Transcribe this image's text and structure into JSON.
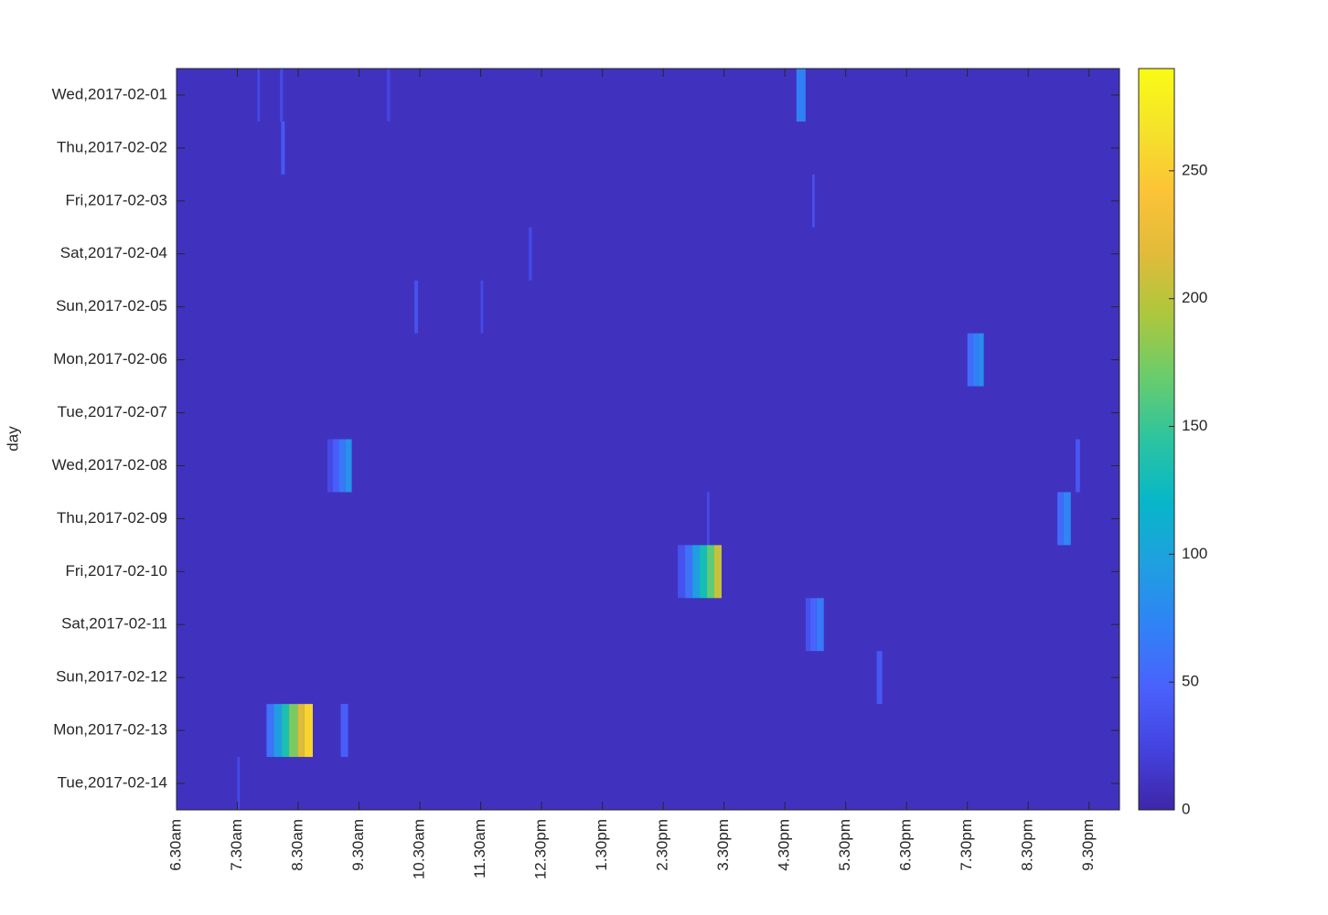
{
  "chart_data": {
    "type": "heatmap",
    "ylabel": "day",
    "categories": [
      "Wed,2017-02-01",
      "Thu,2017-02-02",
      "Fri,2017-02-03",
      "Sat,2017-02-04",
      "Sun,2017-02-05",
      "Mon,2017-02-06",
      "Tue,2017-02-07",
      "Wed,2017-02-08",
      "Thu,2017-02-09",
      "Fri,2017-02-10",
      "Sat,2017-02-11",
      "Sun,2017-02-12",
      "Mon,2017-02-13",
      "Tue,2017-02-14"
    ],
    "xlim": [
      6.5,
      22
    ],
    "xticks": [
      {
        "value": 6.5,
        "label": "6.30am"
      },
      {
        "value": 7.5,
        "label": "7.30am"
      },
      {
        "value": 8.5,
        "label": "8.30am"
      },
      {
        "value": 9.5,
        "label": "9.30am"
      },
      {
        "value": 10.5,
        "label": "10.30am"
      },
      {
        "value": 11.5,
        "label": "11.30am"
      },
      {
        "value": 12.5,
        "label": "12.30pm"
      },
      {
        "value": 13.5,
        "label": "1.30pm"
      },
      {
        "value": 14.5,
        "label": "2.30pm"
      },
      {
        "value": 15.5,
        "label": "3.30pm"
      },
      {
        "value": 16.5,
        "label": "4.30pm"
      },
      {
        "value": 17.5,
        "label": "5.30pm"
      },
      {
        "value": 18.5,
        "label": "6.30pm"
      },
      {
        "value": 19.5,
        "label": "7.30pm"
      },
      {
        "value": 20.5,
        "label": "8.30pm"
      },
      {
        "value": 21.5,
        "label": "9.30pm"
      }
    ],
    "base_value": 10,
    "cells": [
      {
        "row": 0,
        "x0": 16.69,
        "x1": 16.84,
        "value": 70
      },
      {
        "row": 0,
        "x0": 7.83,
        "x1": 7.87,
        "value": 30
      },
      {
        "row": 0,
        "x0": 8.2,
        "x1": 8.25,
        "value": 30
      },
      {
        "row": 0,
        "x0": 9.96,
        "x1": 10.01,
        "value": 25
      },
      {
        "row": 1,
        "x0": 8.22,
        "x1": 8.28,
        "value": 40
      },
      {
        "row": 2,
        "x0": 16.95,
        "x1": 16.99,
        "value": 35
      },
      {
        "row": 3,
        "x0": 12.29,
        "x1": 12.34,
        "value": 30
      },
      {
        "row": 4,
        "x0": 10.41,
        "x1": 10.47,
        "value": 35
      },
      {
        "row": 4,
        "x0": 11.5,
        "x1": 11.54,
        "value": 30
      },
      {
        "row": 5,
        "x0": 19.5,
        "x1": 19.59,
        "value": 55
      },
      {
        "row": 5,
        "x0": 19.59,
        "x1": 19.68,
        "value": 70
      },
      {
        "row": 5,
        "x0": 19.68,
        "x1": 19.77,
        "value": 80
      },
      {
        "row": 7,
        "x0": 8.98,
        "x1": 9.07,
        "value": 30
      },
      {
        "row": 7,
        "x0": 9.07,
        "x1": 9.17,
        "value": 45
      },
      {
        "row": 7,
        "x0": 9.17,
        "x1": 9.28,
        "value": 65
      },
      {
        "row": 7,
        "x0": 9.28,
        "x1": 9.38,
        "value": 85
      },
      {
        "row": 7,
        "x0": 21.28,
        "x1": 21.35,
        "value": 40
      },
      {
        "row": 8,
        "x0": 20.98,
        "x1": 21.08,
        "value": 55
      },
      {
        "row": 8,
        "x0": 21.08,
        "x1": 21.2,
        "value": 75
      },
      {
        "row": 8,
        "x0": 15.22,
        "x1": 15.26,
        "value": 30
      },
      {
        "row": 9,
        "x0": 14.74,
        "x1": 14.86,
        "value": 35
      },
      {
        "row": 9,
        "x0": 14.86,
        "x1": 14.98,
        "value": 60
      },
      {
        "row": 9,
        "x0": 14.98,
        "x1": 15.1,
        "value": 95
      },
      {
        "row": 9,
        "x0": 15.1,
        "x1": 15.22,
        "value": 130
      },
      {
        "row": 9,
        "x0": 15.22,
        "x1": 15.34,
        "value": 165
      },
      {
        "row": 9,
        "x0": 15.34,
        "x1": 15.46,
        "value": 205
      },
      {
        "row": 10,
        "x0": 16.84,
        "x1": 16.92,
        "value": 35
      },
      {
        "row": 10,
        "x0": 16.92,
        "x1": 17.02,
        "value": 50
      },
      {
        "row": 10,
        "x0": 17.02,
        "x1": 17.14,
        "value": 65
      },
      {
        "row": 11,
        "x0": 18.01,
        "x1": 18.1,
        "value": 40
      },
      {
        "row": 12,
        "x0": 7.98,
        "x1": 8.1,
        "value": 60
      },
      {
        "row": 12,
        "x0": 8.1,
        "x1": 8.23,
        "value": 95
      },
      {
        "row": 12,
        "x0": 8.23,
        "x1": 8.35,
        "value": 135
      },
      {
        "row": 12,
        "x0": 8.35,
        "x1": 8.49,
        "value": 175
      },
      {
        "row": 12,
        "x0": 8.49,
        "x1": 8.6,
        "value": 215
      },
      {
        "row": 12,
        "x0": 8.6,
        "x1": 8.74,
        "value": 255
      },
      {
        "row": 12,
        "x0": 9.2,
        "x1": 9.32,
        "value": 45
      },
      {
        "row": 13,
        "x0": 7.5,
        "x1": 7.54,
        "value": 30
      }
    ],
    "clim": [
      0,
      290
    ],
    "cticks": [
      0,
      50,
      100,
      150,
      200,
      250
    ],
    "colormap": [
      "#3e26a8",
      "#4443e0",
      "#4a62fd",
      "#2f83f5",
      "#1fa0df",
      "#07b7c8",
      "#2dc49f",
      "#69cc6c",
      "#acc73d",
      "#e1bb3a",
      "#fcc337",
      "#f5e22a",
      "#f9fb15"
    ]
  }
}
